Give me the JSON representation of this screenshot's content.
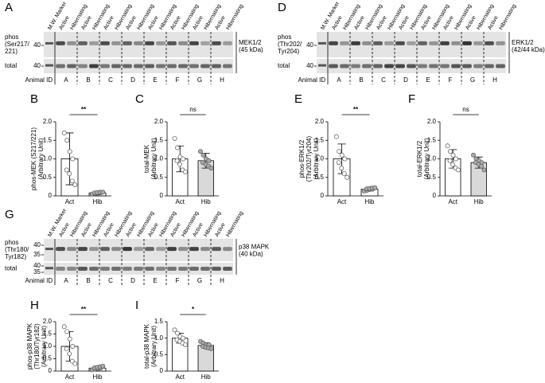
{
  "blots": [
    {
      "panel": "A",
      "lanes": [
        "M.W. Marker",
        "Active",
        "Hibernating",
        "Active",
        "Hibernating",
        "Active",
        "Hibernating",
        "Active",
        "Hibernating",
        "Active",
        "Hibernating",
        "Active",
        "Hibernating",
        "Active",
        "Hibernating",
        "Active",
        "Hibernating"
      ],
      "rows": [
        {
          "label": [
            "phos",
            "(Ser217/",
            "221)"
          ],
          "markers": [
            "40"
          ]
        },
        {
          "label": [
            "total"
          ],
          "markers": [
            "40"
          ]
        }
      ],
      "target": [
        "MEK1/2",
        "(45 kDa)"
      ],
      "id_label": "Animal ID",
      "animals": [
        "A",
        "B",
        "C",
        "D",
        "E",
        "F",
        "G",
        "H"
      ]
    },
    {
      "panel": "D",
      "lanes": [
        "M.W. Marker",
        "Active",
        "Hibernating",
        "Active",
        "Hibernating",
        "Active",
        "Hibernating",
        "Active",
        "Hibernating",
        "Active",
        "Hibernating",
        "Active",
        "Hibernating",
        "Active",
        "Hibernating",
        "Active",
        "Hibernating"
      ],
      "rows": [
        {
          "label": [
            "phos",
            "(Thr202/",
            "Tyr204)"
          ],
          "markers": [
            "40"
          ]
        },
        {
          "label": [
            "total"
          ],
          "markers": [
            "40"
          ]
        }
      ],
      "target": [
        "ERK1/2",
        "(42/44 kDa)"
      ],
      "id_label": "Animal ID",
      "animals": [
        "A",
        "B",
        "C",
        "D",
        "E",
        "F",
        "G",
        "H"
      ]
    },
    {
      "panel": "G",
      "lanes": [
        "M.W. Marker",
        "Active",
        "Hibernating",
        "Active",
        "Hibernating",
        "Active",
        "Hibernating",
        "Active",
        "Hibernating",
        "Active",
        "Hibernating",
        "Active",
        "Hibernating",
        "Active",
        "Hibernating",
        "Active",
        "Hibernating"
      ],
      "rows": [
        {
          "label": [
            "phos",
            "(Thr180/",
            "Tyr182)"
          ],
          "markers": [
            "40",
            "35"
          ]
        },
        {
          "label": [
            "total"
          ],
          "markers": [
            "40",
            "35"
          ]
        }
      ],
      "target": [
        "p38 MAPK",
        "(40 kDa)"
      ],
      "id_label": "Animal ID",
      "animals": [
        "A",
        "B",
        "C",
        "D",
        "E",
        "F",
        "G",
        "H"
      ]
    }
  ],
  "chart_data": [
    {
      "type": "bar",
      "panel": "B",
      "ylabel": [
        "phos-MEK (S217/221)",
        "(Arbitrary Unit)"
      ],
      "categories": [
        "Act",
        "Hib"
      ],
      "values": [
        1.0,
        0.08
      ],
      "errors": [
        0.7,
        0.03
      ],
      "points": [
        [
          1.7,
          1.5,
          1.2,
          1.0,
          0.7,
          0.6,
          0.4,
          0.3
        ],
        [
          0.05,
          0.06,
          0.07,
          0.08,
          0.08,
          0.09,
          0.1,
          0.1
        ]
      ],
      "significance": "**",
      "colors": [
        "#ffffff",
        "#ffffff"
      ],
      "ylim": [
        0,
        2
      ],
      "yticks": [
        0,
        0.5,
        {
          "value": 1,
          "label": "1.0"
        },
        1.5,
        {
          "value": 2,
          "label": "2.0"
        }
      ]
    },
    {
      "type": "bar",
      "panel": "C",
      "ylabel": [
        "total-MEK",
        "(Arbitrary Unit)"
      ],
      "categories": [
        "Act",
        "Hib"
      ],
      "values": [
        1.0,
        0.95
      ],
      "errors": [
        0.35,
        0.2
      ],
      "points": [
        [
          1.55,
          1.3,
          1.05,
          1.0,
          0.95,
          0.85,
          0.7,
          0.65
        ],
        [
          1.2,
          1.1,
          1.0,
          0.95,
          0.9,
          0.85,
          0.8,
          0.75
        ]
      ],
      "significance": "ns",
      "colors": [
        "#ffffff",
        "#d9d9d9"
      ],
      "ylim": [
        0,
        2
      ],
      "yticks": [
        0,
        0.5,
        {
          "value": 1,
          "label": "1.0"
        },
        1.5,
        {
          "value": 2,
          "label": "2.0"
        }
      ]
    },
    {
      "type": "bar",
      "panel": "E",
      "ylabel": [
        "phos-ERK1/2",
        "(Thr202/Tyr204)",
        "(Arbitrary Unit)"
      ],
      "categories": [
        "Act",
        "Hib"
      ],
      "values": [
        1.0,
        0.18
      ],
      "errors": [
        0.4,
        0.04
      ],
      "points": [
        [
          1.6,
          1.2,
          1.1,
          1.0,
          0.9,
          0.75,
          0.6,
          0.5
        ],
        [
          0.13,
          0.15,
          0.17,
          0.18,
          0.19,
          0.2,
          0.21,
          0.22
        ]
      ],
      "significance": "**",
      "colors": [
        "#ffffff",
        "#ffffff"
      ],
      "ylim": [
        0,
        2
      ],
      "yticks": [
        0,
        0.5,
        {
          "value": 1,
          "label": "1.0"
        },
        1.5,
        {
          "value": 2,
          "label": "2.0"
        }
      ]
    },
    {
      "type": "bar",
      "panel": "F",
      "ylabel": [
        "total-ERK1/2",
        "(Arbitrary Unit)"
      ],
      "categories": [
        "Act",
        "Hib"
      ],
      "values": [
        1.0,
        0.9
      ],
      "errors": [
        0.25,
        0.15
      ],
      "points": [
        [
          1.35,
          1.2,
          1.1,
          1.0,
          0.95,
          0.85,
          0.75,
          0.7
        ],
        [
          1.1,
          1.0,
          0.95,
          0.9,
          0.9,
          0.85,
          0.8,
          0.7
        ]
      ],
      "significance": "ns",
      "colors": [
        "#ffffff",
        "#d9d9d9"
      ],
      "ylim": [
        0,
        2
      ],
      "yticks": [
        0,
        0.5,
        {
          "value": 1,
          "label": "1.0"
        },
        1.5,
        {
          "value": 2,
          "label": "2.0"
        }
      ]
    },
    {
      "type": "bar",
      "panel": "H",
      "ylabel": [
        "phos-p38 MAPK",
        "(Thr180/Tyr182)",
        "(Arbitrary Unit)"
      ],
      "categories": [
        "Act",
        "Hib"
      ],
      "values": [
        1.0,
        0.12
      ],
      "errors": [
        0.6,
        0.05
      ],
      "points": [
        [
          1.8,
          1.6,
          1.3,
          1.0,
          0.9,
          0.7,
          0.4,
          0.3
        ],
        [
          0.05,
          0.08,
          0.1,
          0.12,
          0.13,
          0.15,
          0.17,
          0.2
        ]
      ],
      "significance": "**",
      "colors": [
        "#ffffff",
        "#ffffff"
      ],
      "ylim": [
        0,
        2
      ],
      "yticks": [
        0,
        0.5,
        {
          "value": 1,
          "label": "1.0"
        },
        1.5,
        {
          "value": 2,
          "label": "2.0"
        }
      ]
    },
    {
      "type": "bar",
      "panel": "I",
      "ylabel": [
        "total-p38 MAPK",
        "(Arbitrary Unit)"
      ],
      "categories": [
        "Act",
        "Hib"
      ],
      "values": [
        1.0,
        0.78
      ],
      "errors": [
        0.15,
        0.08
      ],
      "points": [
        [
          1.25,
          1.15,
          1.05,
          1.0,
          0.95,
          0.9,
          0.85,
          0.8
        ],
        [
          0.9,
          0.85,
          0.8,
          0.8,
          0.75,
          0.72,
          0.7,
          0.68
        ]
      ],
      "significance": "*",
      "colors": [
        "#ffffff",
        "#d9d9d9"
      ],
      "ylim": [
        0,
        1.5
      ],
      "yticks": [
        0,
        0.5,
        {
          "value": 1,
          "label": "1.0"
        },
        1.5
      ]
    }
  ]
}
